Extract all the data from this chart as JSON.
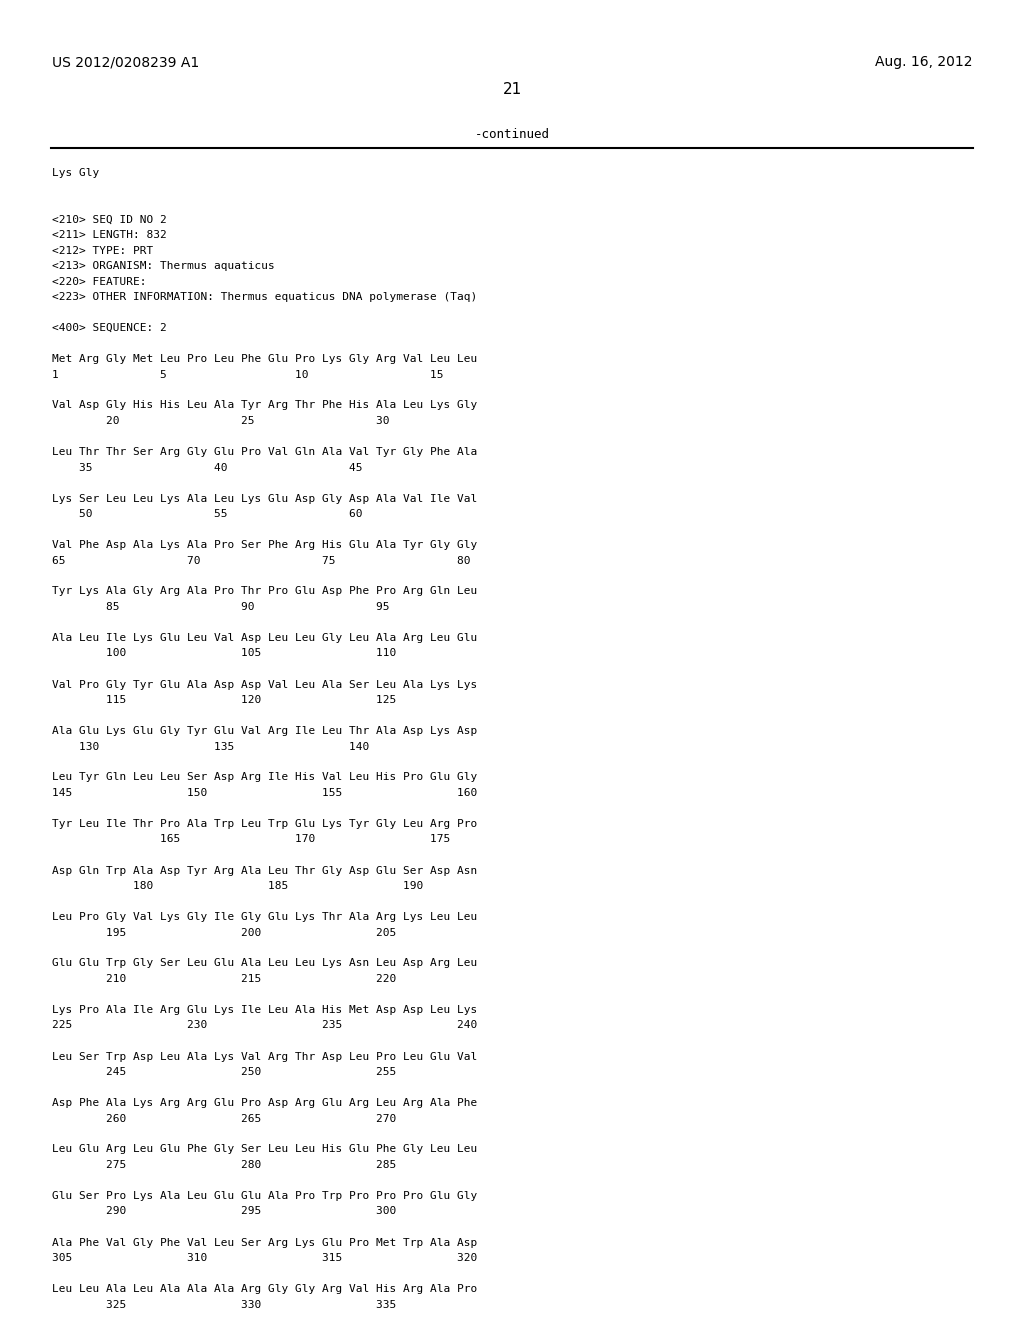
{
  "left_header": "US 2012/0208239 A1",
  "right_header": "Aug. 16, 2012",
  "page_number": "21",
  "continued_text": "-continued",
  "background_color": "#ffffff",
  "text_color": "#000000",
  "body_lines": [
    "Lys Gly",
    "",
    "",
    "<210> SEQ ID NO 2",
    "<211> LENGTH: 832",
    "<212> TYPE: PRT",
    "<213> ORGANISM: Thermus aquaticus",
    "<220> FEATURE:",
    "<223> OTHER INFORMATION: Thermus equaticus DNA polymerase (Taq)",
    "",
    "<400> SEQUENCE: 2",
    "",
    "Met Arg Gly Met Leu Pro Leu Phe Glu Pro Lys Gly Arg Val Leu Leu",
    "1               5                   10                  15",
    "",
    "Val Asp Gly His His Leu Ala Tyr Arg Thr Phe His Ala Leu Lys Gly",
    "        20                  25                  30",
    "",
    "Leu Thr Thr Ser Arg Gly Glu Pro Val Gln Ala Val Tyr Gly Phe Ala",
    "    35                  40                  45",
    "",
    "Lys Ser Leu Leu Lys Ala Leu Lys Glu Asp Gly Asp Ala Val Ile Val",
    "    50                  55                  60",
    "",
    "Val Phe Asp Ala Lys Ala Pro Ser Phe Arg His Glu Ala Tyr Gly Gly",
    "65                  70                  75                  80",
    "",
    "Tyr Lys Ala Gly Arg Ala Pro Thr Pro Glu Asp Phe Pro Arg Gln Leu",
    "        85                  90                  95",
    "",
    "Ala Leu Ile Lys Glu Leu Val Asp Leu Leu Gly Leu Ala Arg Leu Glu",
    "        100                 105                 110",
    "",
    "Val Pro Gly Tyr Glu Ala Asp Asp Val Leu Ala Ser Leu Ala Lys Lys",
    "        115                 120                 125",
    "",
    "Ala Glu Lys Glu Gly Tyr Glu Val Arg Ile Leu Thr Ala Asp Lys Asp",
    "    130                 135                 140",
    "",
    "Leu Tyr Gln Leu Leu Ser Asp Arg Ile His Val Leu His Pro Glu Gly",
    "145                 150                 155                 160",
    "",
    "Tyr Leu Ile Thr Pro Ala Trp Leu Trp Glu Lys Tyr Gly Leu Arg Pro",
    "                165                 170                 175",
    "",
    "Asp Gln Trp Ala Asp Tyr Arg Ala Leu Thr Gly Asp Glu Ser Asp Asn",
    "            180                 185                 190",
    "",
    "Leu Pro Gly Val Lys Gly Ile Gly Glu Lys Thr Ala Arg Lys Leu Leu",
    "        195                 200                 205",
    "",
    "Glu Glu Trp Gly Ser Leu Glu Ala Leu Leu Lys Asn Leu Asp Arg Leu",
    "        210                 215                 220",
    "",
    "Lys Pro Ala Ile Arg Glu Lys Ile Leu Ala His Met Asp Asp Leu Lys",
    "225                 230                 235                 240",
    "",
    "Leu Ser Trp Asp Leu Ala Lys Val Arg Thr Asp Leu Pro Leu Glu Val",
    "        245                 250                 255",
    "",
    "Asp Phe Ala Lys Arg Arg Glu Pro Asp Arg Glu Arg Leu Arg Ala Phe",
    "        260                 265                 270",
    "",
    "Leu Glu Arg Leu Glu Phe Gly Ser Leu Leu His Glu Phe Gly Leu Leu",
    "        275                 280                 285",
    "",
    "Glu Ser Pro Lys Ala Leu Glu Glu Ala Pro Trp Pro Pro Pro Glu Gly",
    "        290                 295                 300",
    "",
    "Ala Phe Val Gly Phe Val Leu Ser Arg Lys Glu Pro Met Trp Ala Asp",
    "305                 310                 315                 320",
    "",
    "Leu Leu Ala Leu Ala Ala Ala Arg Gly Gly Arg Val His Arg Ala Pro",
    "        325                 330                 335"
  ]
}
